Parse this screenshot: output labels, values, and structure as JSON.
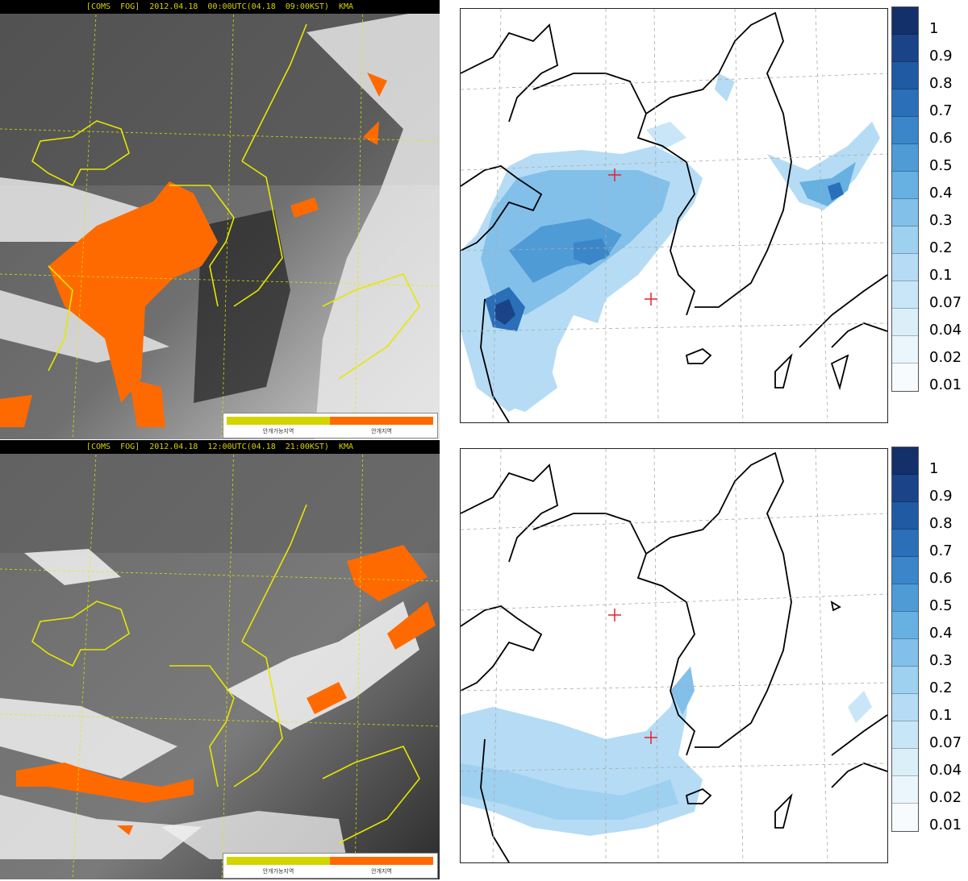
{
  "satellite_panels": [
    {
      "title": "[COMS  FOG]  2012.04.18  00:00UTC(04.18  09:00KST)  KMA",
      "legend_left": "안개가능지역",
      "legend_right": "안개지역"
    },
    {
      "title": "[COMS  FOG]  2012.04.18  12:00UTC(04.18  21:00KST)  KMA",
      "legend_left": "안개가능지역",
      "legend_right": "안개지역"
    }
  ],
  "colorbar": {
    "levels": [
      "1",
      "0.9",
      "0.8",
      "0.7",
      "0.6",
      "0.5",
      "0.4",
      "0.3",
      "0.2",
      "0.1",
      "0.07",
      "0.04",
      "0.02",
      "0.01"
    ],
    "colors": [
      "#14306a",
      "#1a4487",
      "#1f5aa3",
      "#2a6fb8",
      "#3a86c8",
      "#4f9bd6",
      "#67b0e2",
      "#82c0ea",
      "#9ed0f0",
      "#b5dcf4",
      "#c8e6f7",
      "#dbeff9",
      "#ebf6fc",
      "#f7fbfe"
    ]
  },
  "colors": {
    "fog": "#ff6a00",
    "coast_sat": "#e6e600",
    "marker": "#e8212a"
  }
}
